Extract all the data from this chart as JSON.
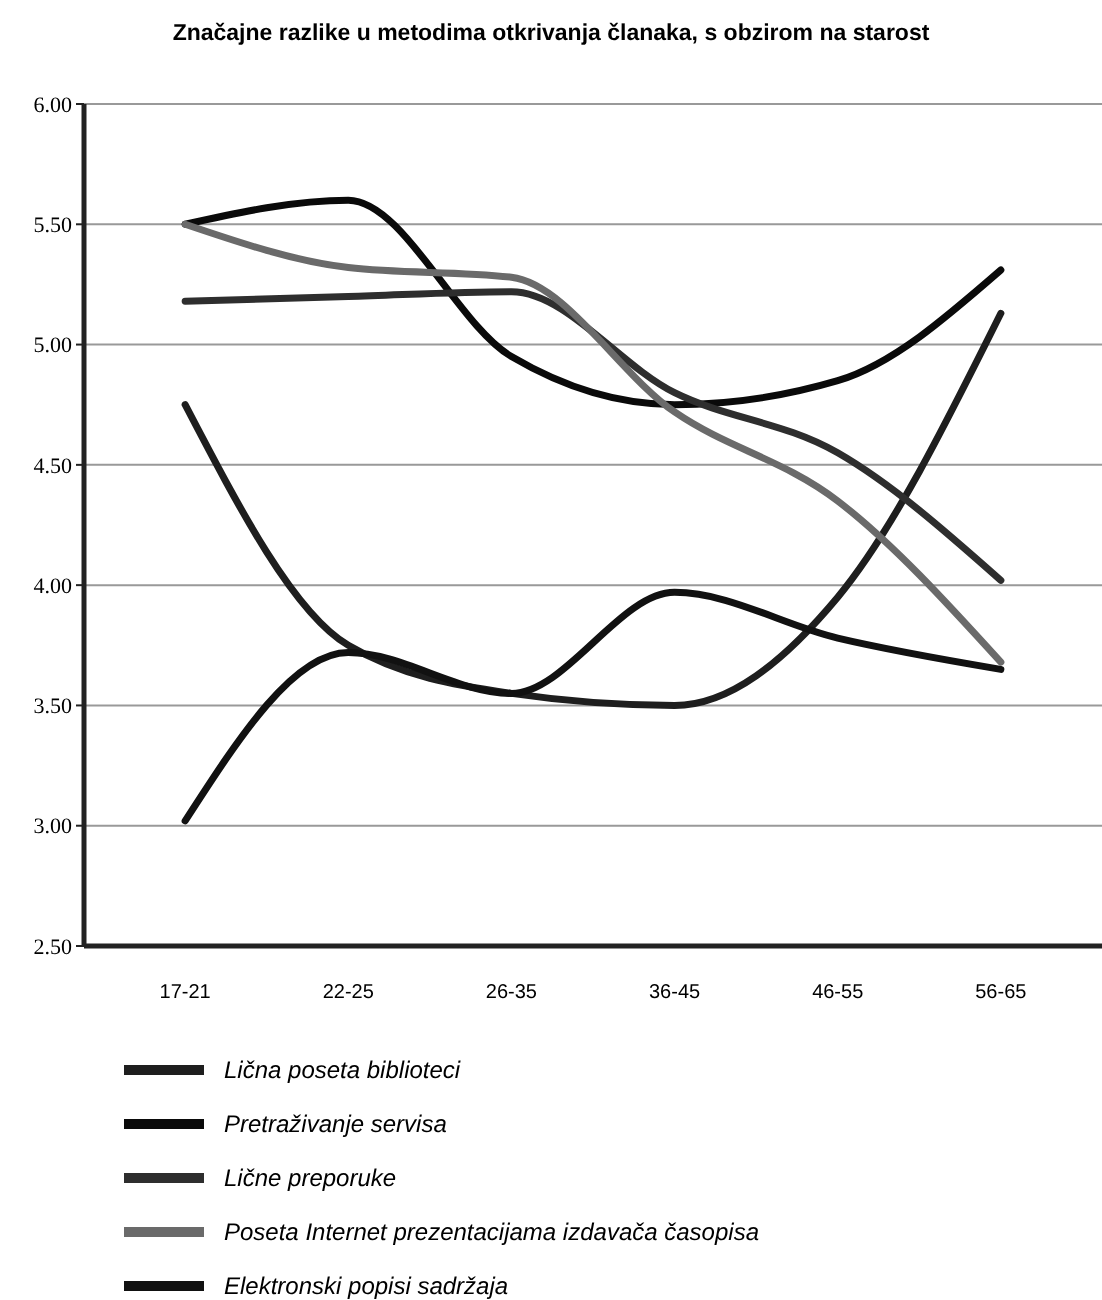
{
  "chart_data": {
    "type": "line",
    "title": "Značajne razlike u metodima otkrivanja članaka, s obzirom na starost",
    "categories": [
      "17-21",
      "22-25",
      "26-35",
      "36-45",
      "46-55",
      "56-65"
    ],
    "series": [
      {
        "name": "Lična poseta biblioteci",
        "color": "#1e1e1e",
        "values": [
          4.75,
          3.75,
          3.55,
          3.5,
          3.95,
          5.13
        ]
      },
      {
        "name": "Pretraživanje servisa",
        "color": "#0a0a0a",
        "values": [
          5.5,
          5.6,
          4.95,
          4.75,
          4.85,
          5.31
        ]
      },
      {
        "name": "Lične preporuke",
        "color": "#2e2e2e",
        "values": [
          5.18,
          5.2,
          5.22,
          4.8,
          4.55,
          4.02
        ]
      },
      {
        "name": "Poseta Internet prezentacijama izdavača časopisa",
        "color": "#6a6a6a",
        "values": [
          5.5,
          5.32,
          5.28,
          4.72,
          4.35,
          3.68
        ]
      },
      {
        "name": "Elektronski popisi sadržaja",
        "color": "#111111",
        "values": [
          3.02,
          3.72,
          3.55,
          3.97,
          3.78,
          3.65
        ]
      }
    ],
    "ylim": [
      2.5,
      6
    ],
    "yticks": [
      {
        "value": 2.5,
        "label": "2.50"
      },
      {
        "value": 3,
        "label": "3.00"
      },
      {
        "value": 3.5,
        "label": "3.50"
      },
      {
        "value": 4,
        "label": "4.00"
      },
      {
        "value": 4.5,
        "label": "4.50"
      },
      {
        "value": 5,
        "label": "5.00"
      },
      {
        "value": 5.5,
        "label": "5.50"
      },
      {
        "value": 6,
        "label": "6.00"
      }
    ],
    "grid": "y",
    "legend": "bottom",
    "marker": "none",
    "line_style": "solid"
  }
}
